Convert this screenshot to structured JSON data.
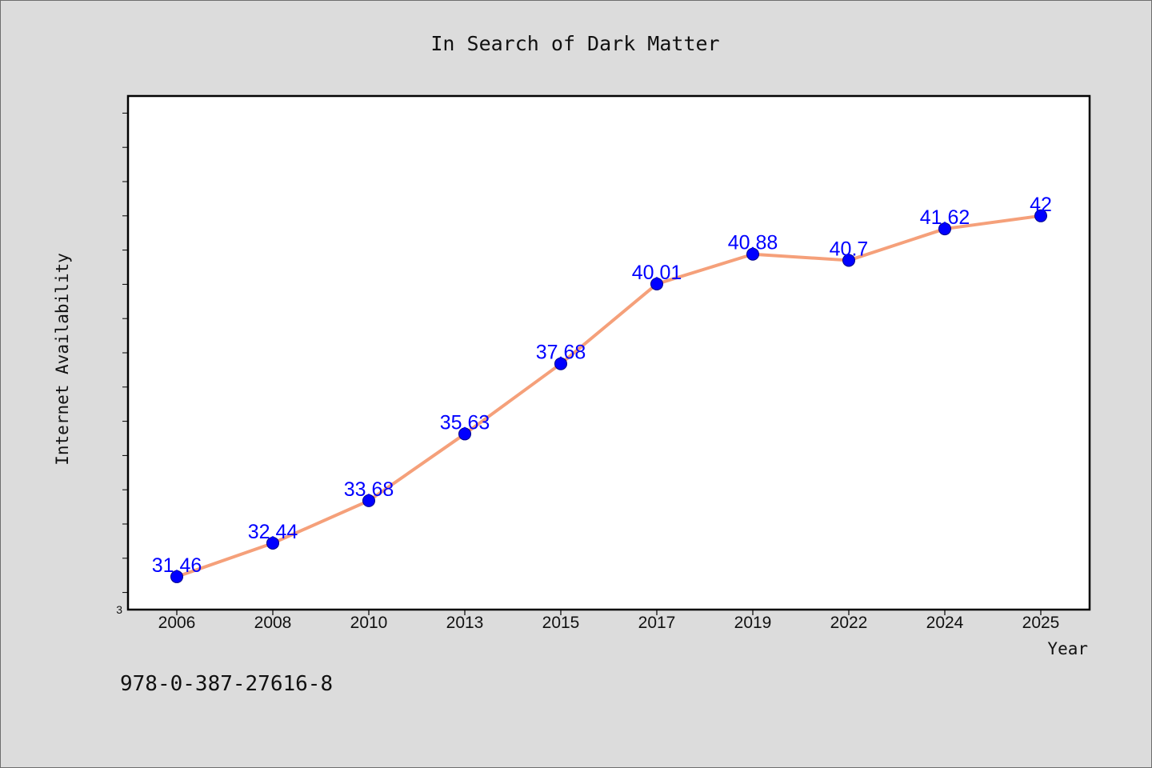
{
  "chart_data": {
    "type": "line",
    "title": "In Search of Dark Matter",
    "xlabel": "Year",
    "ylabel": "Internet Availability",
    "categories": [
      "2006",
      "2008",
      "2010",
      "2013",
      "2015",
      "2017",
      "2019",
      "2022",
      "2024",
      "2025"
    ],
    "values": [
      31.46,
      32.44,
      33.68,
      35.63,
      37.68,
      40.01,
      40.88,
      40.7,
      41.62,
      42
    ],
    "data_labels": [
      "31.46",
      "32.44",
      "33.68",
      "35.63",
      "37.68",
      "40.01",
      "40.88",
      "40.7",
      "41.62",
      "42"
    ],
    "ylim": [
      30.5,
      45.5
    ],
    "y_tick_label": "3",
    "y_minor_tick_step": 1,
    "line_color": "#f5a07a",
    "marker_color": "#0000ff",
    "label_color": "#0000ff",
    "grid": false,
    "legend": "none",
    "footnote": "978-0-387-27616-8"
  }
}
